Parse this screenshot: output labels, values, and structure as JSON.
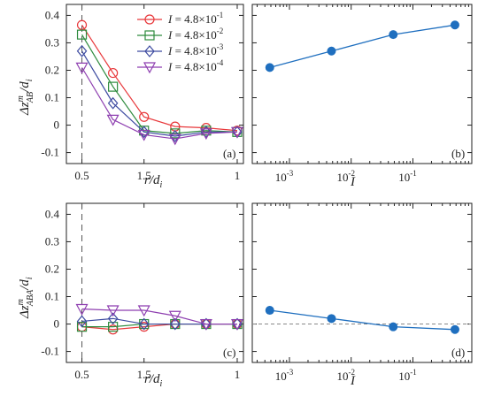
{
  "figure": {
    "xlabel_left": "r/d",
    "xlabel_left_sub": "i",
    "xlabel_right": "I",
    "ylabel_top": {
      "main": "Δz",
      "sup": "m",
      "sub": "AB",
      "den": "/d",
      "den_sub": "i"
    },
    "ylabel_bottom": {
      "main": "Δz",
      "sup": "m",
      "sub": "ABA",
      "den": "/d",
      "den_sub": "i"
    }
  },
  "legend": {
    "var": "I",
    "entries": [
      {
        "text": "= 4.8×10",
        "exp": "-1"
      },
      {
        "text": "= 4.8×10",
        "exp": "-2"
      },
      {
        "text": "= 4.8×10",
        "exp": "-3"
      },
      {
        "text": "= 4.8×10",
        "exp": "-4"
      }
    ]
  },
  "chart_data": [
    {
      "panel": "(a)",
      "type": "line",
      "x": [
        0.5,
        0.6,
        0.7,
        0.8,
        0.9,
        1.0
      ],
      "x_tick_labels": [
        "0.5",
        "1.5",
        "1"
      ],
      "y_tick_labels": [
        "0.4",
        "0.3",
        "0.2",
        "0.1",
        "0",
        "-0.1"
      ],
      "ylim": [
        -0.14,
        0.44
      ],
      "vline_x": 0.5,
      "series": [
        {
          "name": "I = 4.8×10^-1",
          "color": "#e8383b",
          "marker": "circle",
          "values": [
            0.365,
            0.19,
            0.03,
            -0.005,
            -0.01,
            -0.02
          ]
        },
        {
          "name": "I = 4.8×10^-2",
          "color": "#2e8b3e",
          "marker": "square",
          "values": [
            0.33,
            0.14,
            -0.02,
            -0.03,
            -0.02,
            -0.025
          ]
        },
        {
          "name": "I = 4.8×10^-3",
          "color": "#3c4aa0",
          "marker": "diamond",
          "values": [
            0.27,
            0.08,
            -0.025,
            -0.04,
            -0.025,
            -0.025
          ]
        },
        {
          "name": "I = 4.8×10^-4",
          "color": "#8e3fb0",
          "marker": "triangle-down",
          "values": [
            0.21,
            0.02,
            -0.035,
            -0.05,
            -0.03,
            -0.025
          ]
        }
      ]
    },
    {
      "panel": "(b)",
      "type": "line",
      "xscale": "log",
      "x": [
        0.00048,
        0.0048,
        0.048,
        0.48
      ],
      "values": [
        0.21,
        0.27,
        0.33,
        0.365
      ],
      "x_tick_labels": [
        "10",
        "10",
        "10"
      ],
      "x_tick_exps": [
        "-3",
        "-2",
        "-1"
      ],
      "ylim": [
        -0.14,
        0.44
      ],
      "color": "#1f6fbf"
    },
    {
      "panel": "(c)",
      "type": "line",
      "x": [
        0.5,
        0.6,
        0.7,
        0.8,
        0.9,
        1.0
      ],
      "x_tick_labels": [
        "0.5",
        "1.5",
        "1"
      ],
      "y_tick_labels": [
        "0.4",
        "0.3",
        "0.2",
        "0.1",
        "0",
        "-0.1"
      ],
      "ylim": [
        -0.14,
        0.44
      ],
      "vline_x": 0.5,
      "series": [
        {
          "name": "I = 4.8×10^-1",
          "color": "#e8383b",
          "marker": "circle",
          "values": [
            -0.01,
            -0.02,
            -0.01,
            0.0,
            0.0,
            0.0
          ]
        },
        {
          "name": "I = 4.8×10^-2",
          "color": "#2e8b3e",
          "marker": "square",
          "values": [
            -0.01,
            -0.01,
            0.0,
            0.0,
            0.0,
            0.0
          ]
        },
        {
          "name": "I = 4.8×10^-3",
          "color": "#3c4aa0",
          "marker": "diamond",
          "values": [
            0.01,
            0.02,
            0.0,
            0.0,
            0.0,
            0.0
          ]
        },
        {
          "name": "I = 4.8×10^-4",
          "color": "#8e3fb0",
          "marker": "triangle-down",
          "values": [
            0.055,
            0.05,
            0.05,
            0.03,
            0.0,
            0.0
          ]
        }
      ]
    },
    {
      "panel": "(d)",
      "type": "line",
      "xscale": "log",
      "x": [
        0.00048,
        0.0048,
        0.048,
        0.48
      ],
      "values": [
        0.05,
        0.02,
        -0.01,
        -0.02
      ],
      "hline_y": 0,
      "x_tick_labels": [
        "10",
        "10",
        "10"
      ],
      "x_tick_exps": [
        "-3",
        "-2",
        "-1"
      ],
      "ylim": [
        -0.14,
        0.44
      ],
      "color": "#1f6fbf"
    }
  ]
}
